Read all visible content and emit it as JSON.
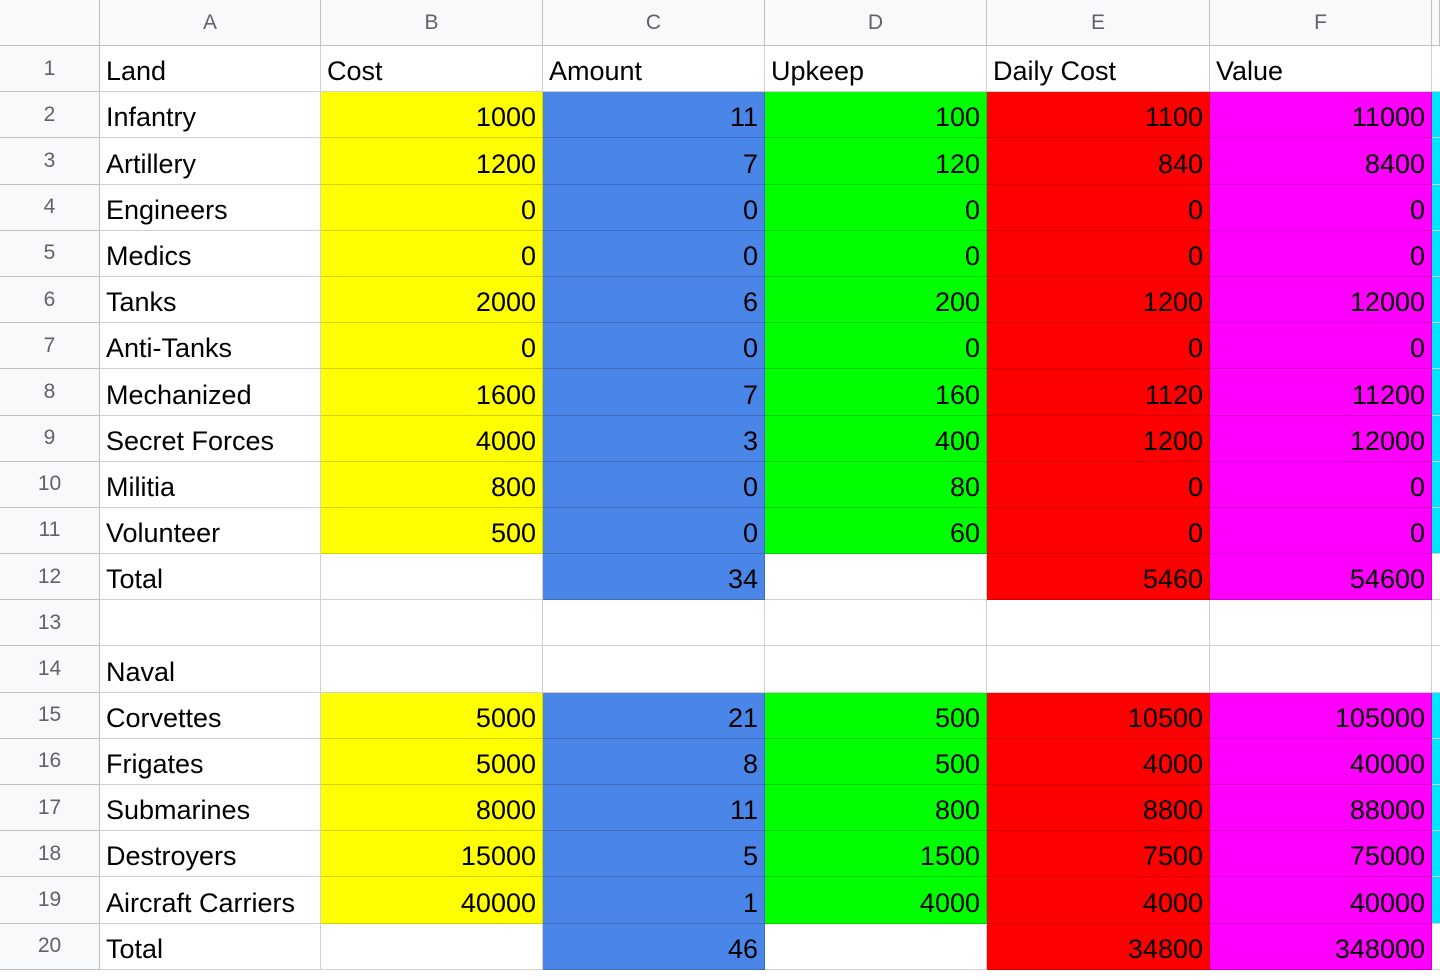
{
  "columns": [
    "A",
    "B",
    "C",
    "D",
    "E",
    "F"
  ],
  "colors": {
    "cost": "#ffff00",
    "amount": "#4a86e8",
    "upkeep": "#00ff00",
    "daily_cost": "#ff0000",
    "value": "#ff00ff",
    "edge_cyan": "#00e5ff",
    "white": "#ffffff"
  },
  "rows": [
    {
      "n": "1",
      "cells": [
        "Land",
        "Cost",
        "Amount",
        "Upkeep",
        "Daily Cost",
        "Value"
      ],
      "fill": [
        "white",
        "white",
        "white",
        "white",
        "white",
        "white"
      ],
      "header": true,
      "edge": false
    },
    {
      "n": "2",
      "cells": [
        "Infantry",
        "1000",
        "11",
        "100",
        "1100",
        "11000"
      ],
      "fill": [
        "white",
        "cost",
        "amount",
        "upkeep",
        "daily_cost",
        "value"
      ],
      "edge": true
    },
    {
      "n": "3",
      "cells": [
        "Artillery",
        "1200",
        "7",
        "120",
        "840",
        "8400"
      ],
      "fill": [
        "white",
        "cost",
        "amount",
        "upkeep",
        "daily_cost",
        "value"
      ],
      "edge": true
    },
    {
      "n": "4",
      "cells": [
        "Engineers",
        "0",
        "0",
        "0",
        "0",
        "0"
      ],
      "fill": [
        "white",
        "cost",
        "amount",
        "upkeep",
        "daily_cost",
        "value"
      ],
      "edge": true
    },
    {
      "n": "5",
      "cells": [
        "Medics",
        "0",
        "0",
        "0",
        "0",
        "0"
      ],
      "fill": [
        "white",
        "cost",
        "amount",
        "upkeep",
        "daily_cost",
        "value"
      ],
      "edge": true
    },
    {
      "n": "6",
      "cells": [
        "Tanks",
        "2000",
        "6",
        "200",
        "1200",
        "12000"
      ],
      "fill": [
        "white",
        "cost",
        "amount",
        "upkeep",
        "daily_cost",
        "value"
      ],
      "edge": true
    },
    {
      "n": "7",
      "cells": [
        "Anti-Tanks",
        "0",
        "0",
        "0",
        "0",
        "0"
      ],
      "fill": [
        "white",
        "cost",
        "amount",
        "upkeep",
        "daily_cost",
        "value"
      ],
      "edge": true
    },
    {
      "n": "8",
      "cells": [
        "Mechanized",
        "1600",
        "7",
        "160",
        "1120",
        "11200"
      ],
      "fill": [
        "white",
        "cost",
        "amount",
        "upkeep",
        "daily_cost",
        "value"
      ],
      "edge": true
    },
    {
      "n": "9",
      "cells": [
        "Secret Forces",
        "4000",
        "3",
        "400",
        "1200",
        "12000"
      ],
      "fill": [
        "white",
        "cost",
        "amount",
        "upkeep",
        "daily_cost",
        "value"
      ],
      "edge": true
    },
    {
      "n": "10",
      "cells": [
        "Militia",
        "800",
        "0",
        "80",
        "0",
        "0"
      ],
      "fill": [
        "white",
        "cost",
        "amount",
        "upkeep",
        "daily_cost",
        "value"
      ],
      "edge": true
    },
    {
      "n": "11",
      "cells": [
        "Volunteer",
        "500",
        "0",
        "60",
        "0",
        "0"
      ],
      "fill": [
        "white",
        "cost",
        "amount",
        "upkeep",
        "daily_cost",
        "value"
      ],
      "edge": true
    },
    {
      "n": "12",
      "cells": [
        "Total",
        "",
        "34",
        "",
        "5460",
        "54600"
      ],
      "fill": [
        "white",
        "white",
        "amount",
        "white",
        "daily_cost",
        "value"
      ],
      "edge": false
    },
    {
      "n": "13",
      "cells": [
        "",
        "",
        "",
        "",
        "",
        ""
      ],
      "fill": [
        "white",
        "white",
        "white",
        "white",
        "white",
        "white"
      ],
      "edge": false
    },
    {
      "n": "14",
      "cells": [
        "Naval",
        "",
        "",
        "",
        "",
        ""
      ],
      "fill": [
        "white",
        "white",
        "white",
        "white",
        "white",
        "white"
      ],
      "edge": false
    },
    {
      "n": "15",
      "cells": [
        "Corvettes",
        "5000",
        "21",
        "500",
        "10500",
        "105000"
      ],
      "fill": [
        "white",
        "cost",
        "amount",
        "upkeep",
        "daily_cost",
        "value"
      ],
      "edge": true
    },
    {
      "n": "16",
      "cells": [
        "Frigates",
        "5000",
        "8",
        "500",
        "4000",
        "40000"
      ],
      "fill": [
        "white",
        "cost",
        "amount",
        "upkeep",
        "daily_cost",
        "value"
      ],
      "edge": true
    },
    {
      "n": "17",
      "cells": [
        "Submarines",
        "8000",
        "11",
        "800",
        "8800",
        "88000"
      ],
      "fill": [
        "white",
        "cost",
        "amount",
        "upkeep",
        "daily_cost",
        "value"
      ],
      "edge": true
    },
    {
      "n": "18",
      "cells": [
        "Destroyers",
        "15000",
        "5",
        "1500",
        "7500",
        "75000"
      ],
      "fill": [
        "white",
        "cost",
        "amount",
        "upkeep",
        "daily_cost",
        "value"
      ],
      "edge": true
    },
    {
      "n": "19",
      "cells": [
        "Aircraft Carriers",
        "40000",
        "1",
        "4000",
        "4000",
        "40000"
      ],
      "fill": [
        "white",
        "cost",
        "amount",
        "upkeep",
        "daily_cost",
        "value"
      ],
      "edge": true
    },
    {
      "n": "20",
      "cells": [
        "Total",
        "",
        "46",
        "",
        "34800",
        "348000"
      ],
      "fill": [
        "white",
        "white",
        "amount",
        "white",
        "daily_cost",
        "value"
      ],
      "edge": false
    }
  ]
}
